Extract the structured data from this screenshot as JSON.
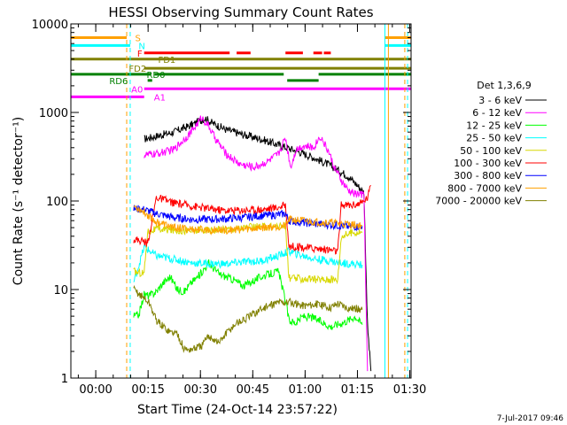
{
  "chart_data": {
    "type": "line",
    "title": "HESSI Observing Summary Count Rates",
    "xlabel": "Start Time (24-Oct-14 23:57:22)",
    "ylabel": "Count Rate (s⁻¹ detector⁻¹)",
    "x_unit": "minutes after start",
    "xlim": [
      -4.5,
      93
    ],
    "ylim": [
      1,
      10000
    ],
    "yscale": "log",
    "grid": false,
    "legend_position": "right",
    "legend_title": "Det 1,3,6,9",
    "footer_date": "7-Jul-2017 09:46",
    "x_ticks": [
      {
        "value": 2.63,
        "label": "00:00"
      },
      {
        "value": 17.63,
        "label": "00:15"
      },
      {
        "value": 32.63,
        "label": "00:30"
      },
      {
        "value": 47.63,
        "label": "00:45"
      },
      {
        "value": 62.63,
        "label": "01:00"
      },
      {
        "value": 77.63,
        "label": "01:15"
      },
      {
        "value": 92.63,
        "label": "01:30"
      }
    ],
    "y_ticks": [
      {
        "value": 1,
        "label": "1"
      },
      {
        "value": 10,
        "label": "10"
      },
      {
        "value": 100,
        "label": "100"
      },
      {
        "value": 1000,
        "label": "1000"
      },
      {
        "value": 10000,
        "label": "10000"
      }
    ],
    "series": [
      {
        "name": "3 - 6 keV",
        "color": "#000000",
        "x": [
          16.5,
          20,
          25,
          30,
          34,
          36,
          40,
          45,
          50,
          55,
          60,
          65,
          70,
          75,
          78,
          79.5,
          80.5,
          81.5
        ],
        "y": [
          500,
          540,
          600,
          720,
          860,
          760,
          640,
          560,
          500,
          430,
          370,
          310,
          250,
          190,
          145,
          125,
          4,
          1.2
        ]
      },
      {
        "name": "6 - 12 keV",
        "color": "#ff00ff",
        "x": [
          16.5,
          20,
          25,
          30,
          33,
          35,
          37,
          40,
          44,
          48,
          52,
          55,
          57,
          58.5,
          60,
          62,
          65,
          67,
          69.5,
          71,
          73,
          75,
          77,
          78.5,
          79.5,
          80.5
        ],
        "y": [
          330,
          340,
          380,
          600,
          880,
          700,
          500,
          340,
          260,
          240,
          280,
          340,
          520,
          240,
          380,
          420,
          400,
          540,
          350,
          240,
          170,
          130,
          120,
          120,
          115,
          1.2
        ]
      },
      {
        "name": "12 - 25 keV",
        "color": "#00ff00",
        "x": [
          13.5,
          15,
          16.5,
          18,
          20,
          22,
          24,
          26,
          28,
          30,
          32,
          35,
          38,
          42,
          45,
          50,
          55,
          57,
          58,
          60,
          62,
          65,
          70,
          73,
          75,
          77,
          79
        ],
        "y": [
          5,
          5.2,
          8.8,
          8.5,
          9.5,
          12,
          14,
          10,
          9.5,
          12,
          14,
          20,
          15,
          13,
          11,
          14,
          16,
          7.5,
          4.5,
          4.2,
          5,
          4.8,
          3.8,
          4.2,
          4.5,
          5,
          4
        ]
      },
      {
        "name": "25 - 50 keV",
        "color": "#00ffff",
        "x": [
          13.5,
          16.5,
          20,
          25,
          30,
          35,
          40,
          45,
          50,
          55,
          57,
          58,
          62,
          66,
          70,
          72,
          73,
          76,
          79
        ],
        "y": [
          12,
          30,
          24,
          22,
          20,
          19.5,
          19.5,
          20.5,
          21,
          24,
          26,
          27,
          24,
          22,
          21,
          20,
          20,
          19.5,
          19
        ]
      },
      {
        "name": "50 - 100 keV",
        "color": "#d8d800",
        "x": [
          13.5,
          15,
          16.5,
          17.5,
          20,
          25,
          30,
          35,
          40,
          45,
          50,
          55,
          57,
          58,
          62,
          66,
          70,
          72,
          73,
          76,
          79
        ],
        "y": [
          16,
          15.5,
          15.5,
          45,
          48,
          47,
          46,
          47,
          48,
          50,
          51,
          52,
          52,
          13.5,
          13.2,
          13,
          13,
          13,
          40,
          44,
          45
        ]
      },
      {
        "name": "100 - 300 keV",
        "color": "#ff0000",
        "x": [
          13.5,
          16.5,
          17.5,
          20,
          25,
          30,
          35,
          40,
          45,
          50,
          55,
          57,
          58,
          62,
          66,
          70,
          72,
          73,
          76,
          79,
          80.5,
          81.5
        ],
        "y": [
          37,
          35,
          33,
          110,
          95,
          88,
          82,
          78,
          79,
          80,
          85,
          90,
          31,
          30,
          29,
          28,
          27,
          90,
          90,
          95,
          110,
          150
        ]
      },
      {
        "name": "300 - 800 keV",
        "color": "#0000ff",
        "x": [
          13.5,
          16.5,
          20,
          25,
          30,
          35,
          40,
          45,
          50,
          55,
          57,
          58,
          62,
          66,
          70,
          72,
          73,
          76,
          79
        ],
        "y": [
          82,
          80,
          72,
          65,
          62,
          62,
          63,
          65,
          68,
          70,
          72,
          60,
          57,
          55,
          54,
          53,
          52,
          51,
          52
        ]
      },
      {
        "name": "800 - 7000 keV",
        "color": "#ffa000",
        "x": [
          13.5,
          16.5,
          20,
          25,
          30,
          35,
          40,
          45,
          50,
          55,
          57,
          58,
          62,
          66,
          70,
          72,
          76,
          79
        ],
        "y": [
          88,
          75,
          58,
          50,
          48,
          47,
          47,
          48,
          50,
          52,
          52,
          62,
          60,
          58,
          57,
          56,
          54,
          53
        ]
      },
      {
        "name": "7000 - 20000 keV",
        "color": "#808000",
        "x": [
          13.5,
          16.5,
          18,
          20,
          22,
          24,
          26,
          28,
          30,
          33,
          35,
          38,
          40,
          43,
          45,
          50,
          55,
          58,
          62,
          66,
          70,
          72,
          75,
          77,
          79
        ],
        "y": [
          10,
          8,
          7,
          4.5,
          3.8,
          3.3,
          3.2,
          2.1,
          2.1,
          2.3,
          3,
          2.5,
          3.2,
          4.2,
          4.5,
          6,
          7.2,
          7.2,
          6.6,
          6.8,
          6.3,
          7,
          6.2,
          6.1,
          5.9
        ]
      }
    ],
    "flag_bars": [
      {
        "name": "S",
        "color": "#ffa000",
        "y": 7000,
        "label_x": 13.9,
        "segments": [
          [
            -4.5,
            11.5
          ],
          [
            85.5,
            93
          ]
        ]
      },
      {
        "name": "N",
        "color": "#00ffff",
        "y": 5700,
        "label_x": 14.9,
        "segments": [
          [
            -4.5,
            12.5
          ],
          [
            85.5,
            93
          ]
        ]
      },
      {
        "name": "F",
        "color": "#ff0000",
        "y": 4700,
        "label_x": 14.5,
        "segments": [
          [
            16.5,
            41
          ],
          [
            43,
            47
          ],
          [
            57,
            62
          ],
          [
            65,
            67.5
          ],
          [
            68,
            70
          ]
        ]
      },
      {
        "name": "FD1",
        "color": "#808000",
        "y": 4000,
        "label_x": 20.5,
        "segments": [
          [
            -4.5,
            93
          ]
        ]
      },
      {
        "name": "FD2",
        "color": "#808000",
        "y": 3150,
        "label_x": 12.1,
        "segments": [
          [
            16.5,
            93
          ]
        ]
      },
      {
        "name": "RD0",
        "color": "#008000",
        "y": 2700,
        "label_x": 17.2,
        "segments": [
          [
            -4.5,
            18.5
          ],
          [
            19.5,
            56.5
          ],
          [
            66.5,
            93
          ]
        ]
      },
      {
        "name": "RD6",
        "color": "#008000",
        "y": 2300,
        "label_x": 6.5,
        "segments": [
          [
            17.5,
            18.8
          ],
          [
            57.5,
            66.5
          ]
        ]
      },
      {
        "name": "A0",
        "color": "#ff00ff",
        "y": 1850,
        "label_x": 12.8,
        "segments": [
          [
            16.5,
            93
          ]
        ]
      },
      {
        "name": "A1",
        "color": "#ff00ff",
        "y": 1500,
        "label_x": 19.3,
        "segments": [
          [
            -4.5,
            16.5
          ]
        ]
      }
    ],
    "vertical_lines": [
      {
        "x": 11.5,
        "color": "#ffa000",
        "style": "dashed"
      },
      {
        "x": 12.5,
        "color": "#00ffff",
        "style": "dashed"
      },
      {
        "x": 85.5,
        "color": "#00ffff",
        "style": "solid"
      },
      {
        "x": 86.5,
        "color": "#ffa000",
        "style": "solid"
      },
      {
        "x": 91.2,
        "color": "#ffa000",
        "style": "dashed"
      },
      {
        "x": 92,
        "color": "#00ffff",
        "style": "dashed"
      }
    ]
  }
}
